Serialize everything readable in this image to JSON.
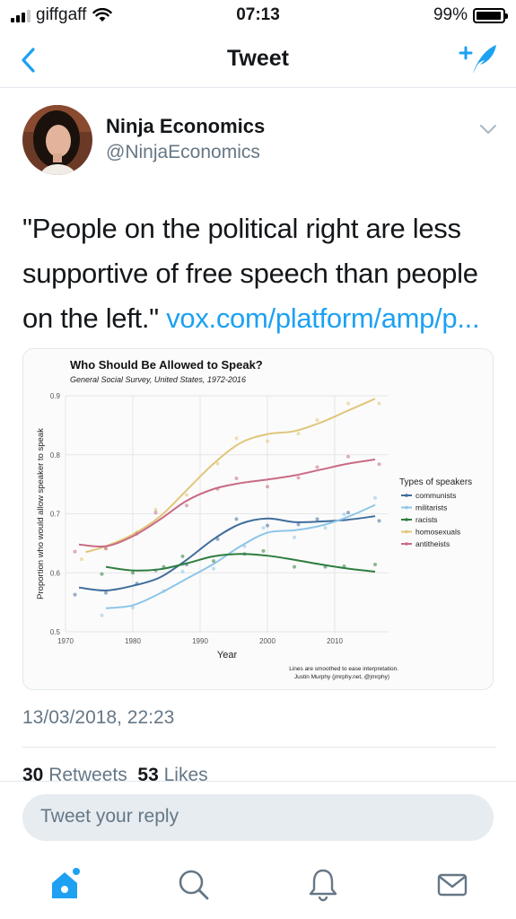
{
  "status": {
    "carrier": "giffgaff",
    "time": "07:13",
    "battery": "99%"
  },
  "nav": {
    "title": "Tweet"
  },
  "tweet": {
    "name": "Ninja Economics",
    "handle": "@NinjaEconomics",
    "text": "\"People on the political right are less supportive of free speech than people on the left.\" ",
    "link": "vox.com/platform/amp/p...",
    "timestamp": "13/03/2018, 22:23",
    "retweets_count": "30",
    "retweets_label": "Retweets",
    "likes_count": "53",
    "likes_label": "Likes"
  },
  "reply": {
    "placeholder": "Tweet your reply"
  },
  "icons": {
    "back": "chevron-left-icon",
    "compose": "compose-tweet-icon",
    "caret": "chevron-down-icon",
    "home": "home-icon",
    "search": "search-icon",
    "notifications": "bell-icon",
    "messages": "mail-icon"
  },
  "colors": {
    "accent": "#1da1f2"
  },
  "chart_data": {
    "type": "line",
    "title": "Who Should Be Allowed to Speak?",
    "subtitle": "General Social Survey, United States, 1972-2016",
    "xlabel": "Year",
    "ylabel": "Proportion who would allow speaker to speak",
    "xlim": [
      1970,
      2018
    ],
    "ylim": [
      0.5,
      0.9
    ],
    "xticks": [
      1970,
      1980,
      1990,
      2000,
      2010
    ],
    "yticks": [
      0.5,
      0.6,
      0.7,
      0.8,
      0.9
    ],
    "legend_title": "Types of speakers",
    "legend_position": "right",
    "grid": true,
    "note_line1": "Lines are smoothed to ease interpretation.",
    "note_line2": "Justin Murphy (jmrphy.net, @jmrphy)",
    "series": [
      {
        "name": "communists",
        "color": "#3f6d9c",
        "x": [
          1972,
          1976,
          1980,
          1984,
          1988,
          1992,
          1996,
          2000,
          2004,
          2008,
          2012,
          2016
        ],
        "y": [
          0.575,
          0.57,
          0.578,
          0.592,
          0.622,
          0.657,
          0.683,
          0.692,
          0.686,
          0.687,
          0.69,
          0.696
        ]
      },
      {
        "name": "militarists",
        "color": "#8dc6e8",
        "x": [
          1976,
          1980,
          1984,
          1988,
          1992,
          1996,
          2000,
          2004,
          2008,
          2012,
          2016
        ],
        "y": [
          0.54,
          0.545,
          0.565,
          0.59,
          0.615,
          0.645,
          0.668,
          0.672,
          0.68,
          0.695,
          0.715
        ]
      },
      {
        "name": "racists",
        "color": "#2e7d3f",
        "x": [
          1976,
          1980,
          1984,
          1988,
          1992,
          1996,
          2000,
          2004,
          2008,
          2012,
          2016
        ],
        "y": [
          0.61,
          0.604,
          0.606,
          0.616,
          0.628,
          0.632,
          0.629,
          0.622,
          0.614,
          0.607,
          0.602
        ]
      },
      {
        "name": "homosexuals",
        "color": "#e0c679",
        "x": [
          1973,
          1976,
          1980,
          1984,
          1988,
          1992,
          1996,
          2000,
          2004,
          2008,
          2012,
          2016
        ],
        "y": [
          0.635,
          0.645,
          0.665,
          0.695,
          0.74,
          0.785,
          0.82,
          0.835,
          0.84,
          0.855,
          0.875,
          0.895
        ]
      },
      {
        "name": "antitheists",
        "color": "#c96b84",
        "x": [
          1972,
          1976,
          1980,
          1984,
          1988,
          1992,
          1996,
          2000,
          2004,
          2008,
          2012,
          2016
        ],
        "y": [
          0.648,
          0.645,
          0.662,
          0.69,
          0.722,
          0.742,
          0.752,
          0.758,
          0.765,
          0.775,
          0.785,
          0.792
        ]
      }
    ]
  }
}
